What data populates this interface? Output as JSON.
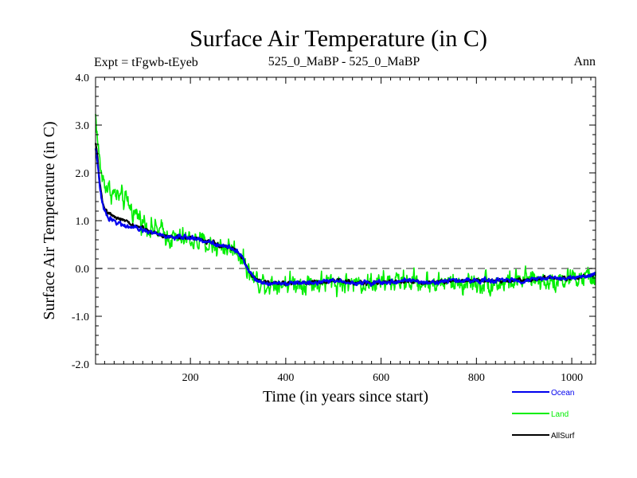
{
  "chart_data": {
    "type": "line",
    "title": "Surface Air Temperature (in C)",
    "subtitle_left": "Expt = tFgwb-tEyeb",
    "subtitle_center": "525_0_MaBP - 525_0_MaBP",
    "subtitle_right": "Ann",
    "xlabel": "Time (in years since start)",
    "ylabel": "Surface Air Temperature (in C)",
    "xlim": [
      1,
      1050
    ],
    "ylim": [
      -2.0,
      4.0
    ],
    "xticks": [
      200,
      400,
      600,
      800,
      1000
    ],
    "xtick_labels": [
      "200",
      "400",
      "600",
      "800",
      "1000"
    ],
    "yticks": [
      -2.0,
      -1.0,
      0.0,
      1.0,
      2.0,
      3.0,
      4.0
    ],
    "ytick_labels": [
      "-2.0",
      "-1.0",
      "0.0",
      "1.0",
      "2.0",
      "3.0",
      "4.0"
    ],
    "reference_line": {
      "y": 0.0,
      "style": "dashed"
    },
    "legend_position": "bottom-right",
    "series": [
      {
        "name": "Land",
        "color": "#00ee00",
        "noise": 0.28,
        "x": [
          1,
          3,
          6,
          10,
          15,
          20,
          30,
          40,
          50,
          60,
          70,
          80,
          90,
          100,
          110,
          120,
          130,
          140,
          150,
          160,
          180,
          200,
          220,
          240,
          260,
          280,
          300,
          310,
          320,
          330,
          340,
          360,
          380,
          400,
          450,
          500,
          550,
          600,
          650,
          700,
          750,
          800,
          850,
          900,
          950,
          1000,
          1050
        ],
        "y": [
          3.2,
          3.0,
          2.6,
          2.2,
          1.9,
          1.8,
          1.65,
          1.55,
          1.5,
          1.4,
          1.35,
          1.2,
          1.1,
          1.0,
          0.9,
          0.85,
          0.8,
          0.75,
          0.7,
          0.65,
          0.6,
          0.6,
          0.55,
          0.5,
          0.45,
          0.45,
          0.35,
          0.2,
          0.0,
          -0.2,
          -0.25,
          -0.3,
          -0.3,
          -0.3,
          -0.3,
          -0.3,
          -0.3,
          -0.3,
          -0.25,
          -0.3,
          -0.3,
          -0.3,
          -0.3,
          -0.25,
          -0.25,
          -0.2,
          -0.2
        ]
      },
      {
        "name": "AllSurf",
        "color": "#000000",
        "noise": 0.05,
        "x": [
          1,
          3,
          6,
          10,
          15,
          20,
          30,
          40,
          50,
          60,
          80,
          100,
          120,
          140,
          160,
          180,
          200,
          220,
          240,
          260,
          280,
          300,
          310,
          320,
          330,
          340,
          360,
          400,
          450,
          500,
          550,
          600,
          650,
          700,
          750,
          800,
          850,
          900,
          950,
          1000,
          1050
        ],
        "y": [
          2.6,
          2.5,
          2.2,
          1.8,
          1.4,
          1.25,
          1.15,
          1.1,
          1.05,
          1.0,
          0.9,
          0.85,
          0.75,
          0.7,
          0.65,
          0.65,
          0.65,
          0.6,
          0.55,
          0.5,
          0.45,
          0.35,
          0.2,
          0.0,
          -0.15,
          -0.25,
          -0.3,
          -0.3,
          -0.3,
          -0.25,
          -0.3,
          -0.3,
          -0.25,
          -0.3,
          -0.25,
          -0.25,
          -0.25,
          -0.25,
          -0.2,
          -0.2,
          -0.15
        ]
      },
      {
        "name": "Ocean",
        "color": "#0000ee",
        "noise": 0.06,
        "x": [
          1,
          3,
          6,
          10,
          15,
          20,
          30,
          40,
          50,
          60,
          80,
          100,
          120,
          140,
          160,
          180,
          200,
          220,
          240,
          260,
          280,
          300,
          310,
          320,
          330,
          340,
          360,
          400,
          450,
          500,
          550,
          600,
          650,
          700,
          750,
          800,
          850,
          900,
          950,
          1000,
          1050
        ],
        "y": [
          2.5,
          2.4,
          2.1,
          1.7,
          1.35,
          1.2,
          1.05,
          1.0,
          0.95,
          0.9,
          0.85,
          0.8,
          0.75,
          0.7,
          0.65,
          0.65,
          0.65,
          0.6,
          0.55,
          0.5,
          0.45,
          0.35,
          0.2,
          0.0,
          -0.15,
          -0.25,
          -0.3,
          -0.3,
          -0.3,
          -0.25,
          -0.3,
          -0.3,
          -0.25,
          -0.3,
          -0.25,
          -0.25,
          -0.25,
          -0.25,
          -0.2,
          -0.2,
          -0.15
        ]
      }
    ],
    "legend": [
      {
        "name": "Ocean",
        "color": "#0000ee"
      },
      {
        "name": "Land",
        "color": "#00ee00"
      },
      {
        "name": "AllSurf",
        "color": "#000000"
      }
    ]
  }
}
